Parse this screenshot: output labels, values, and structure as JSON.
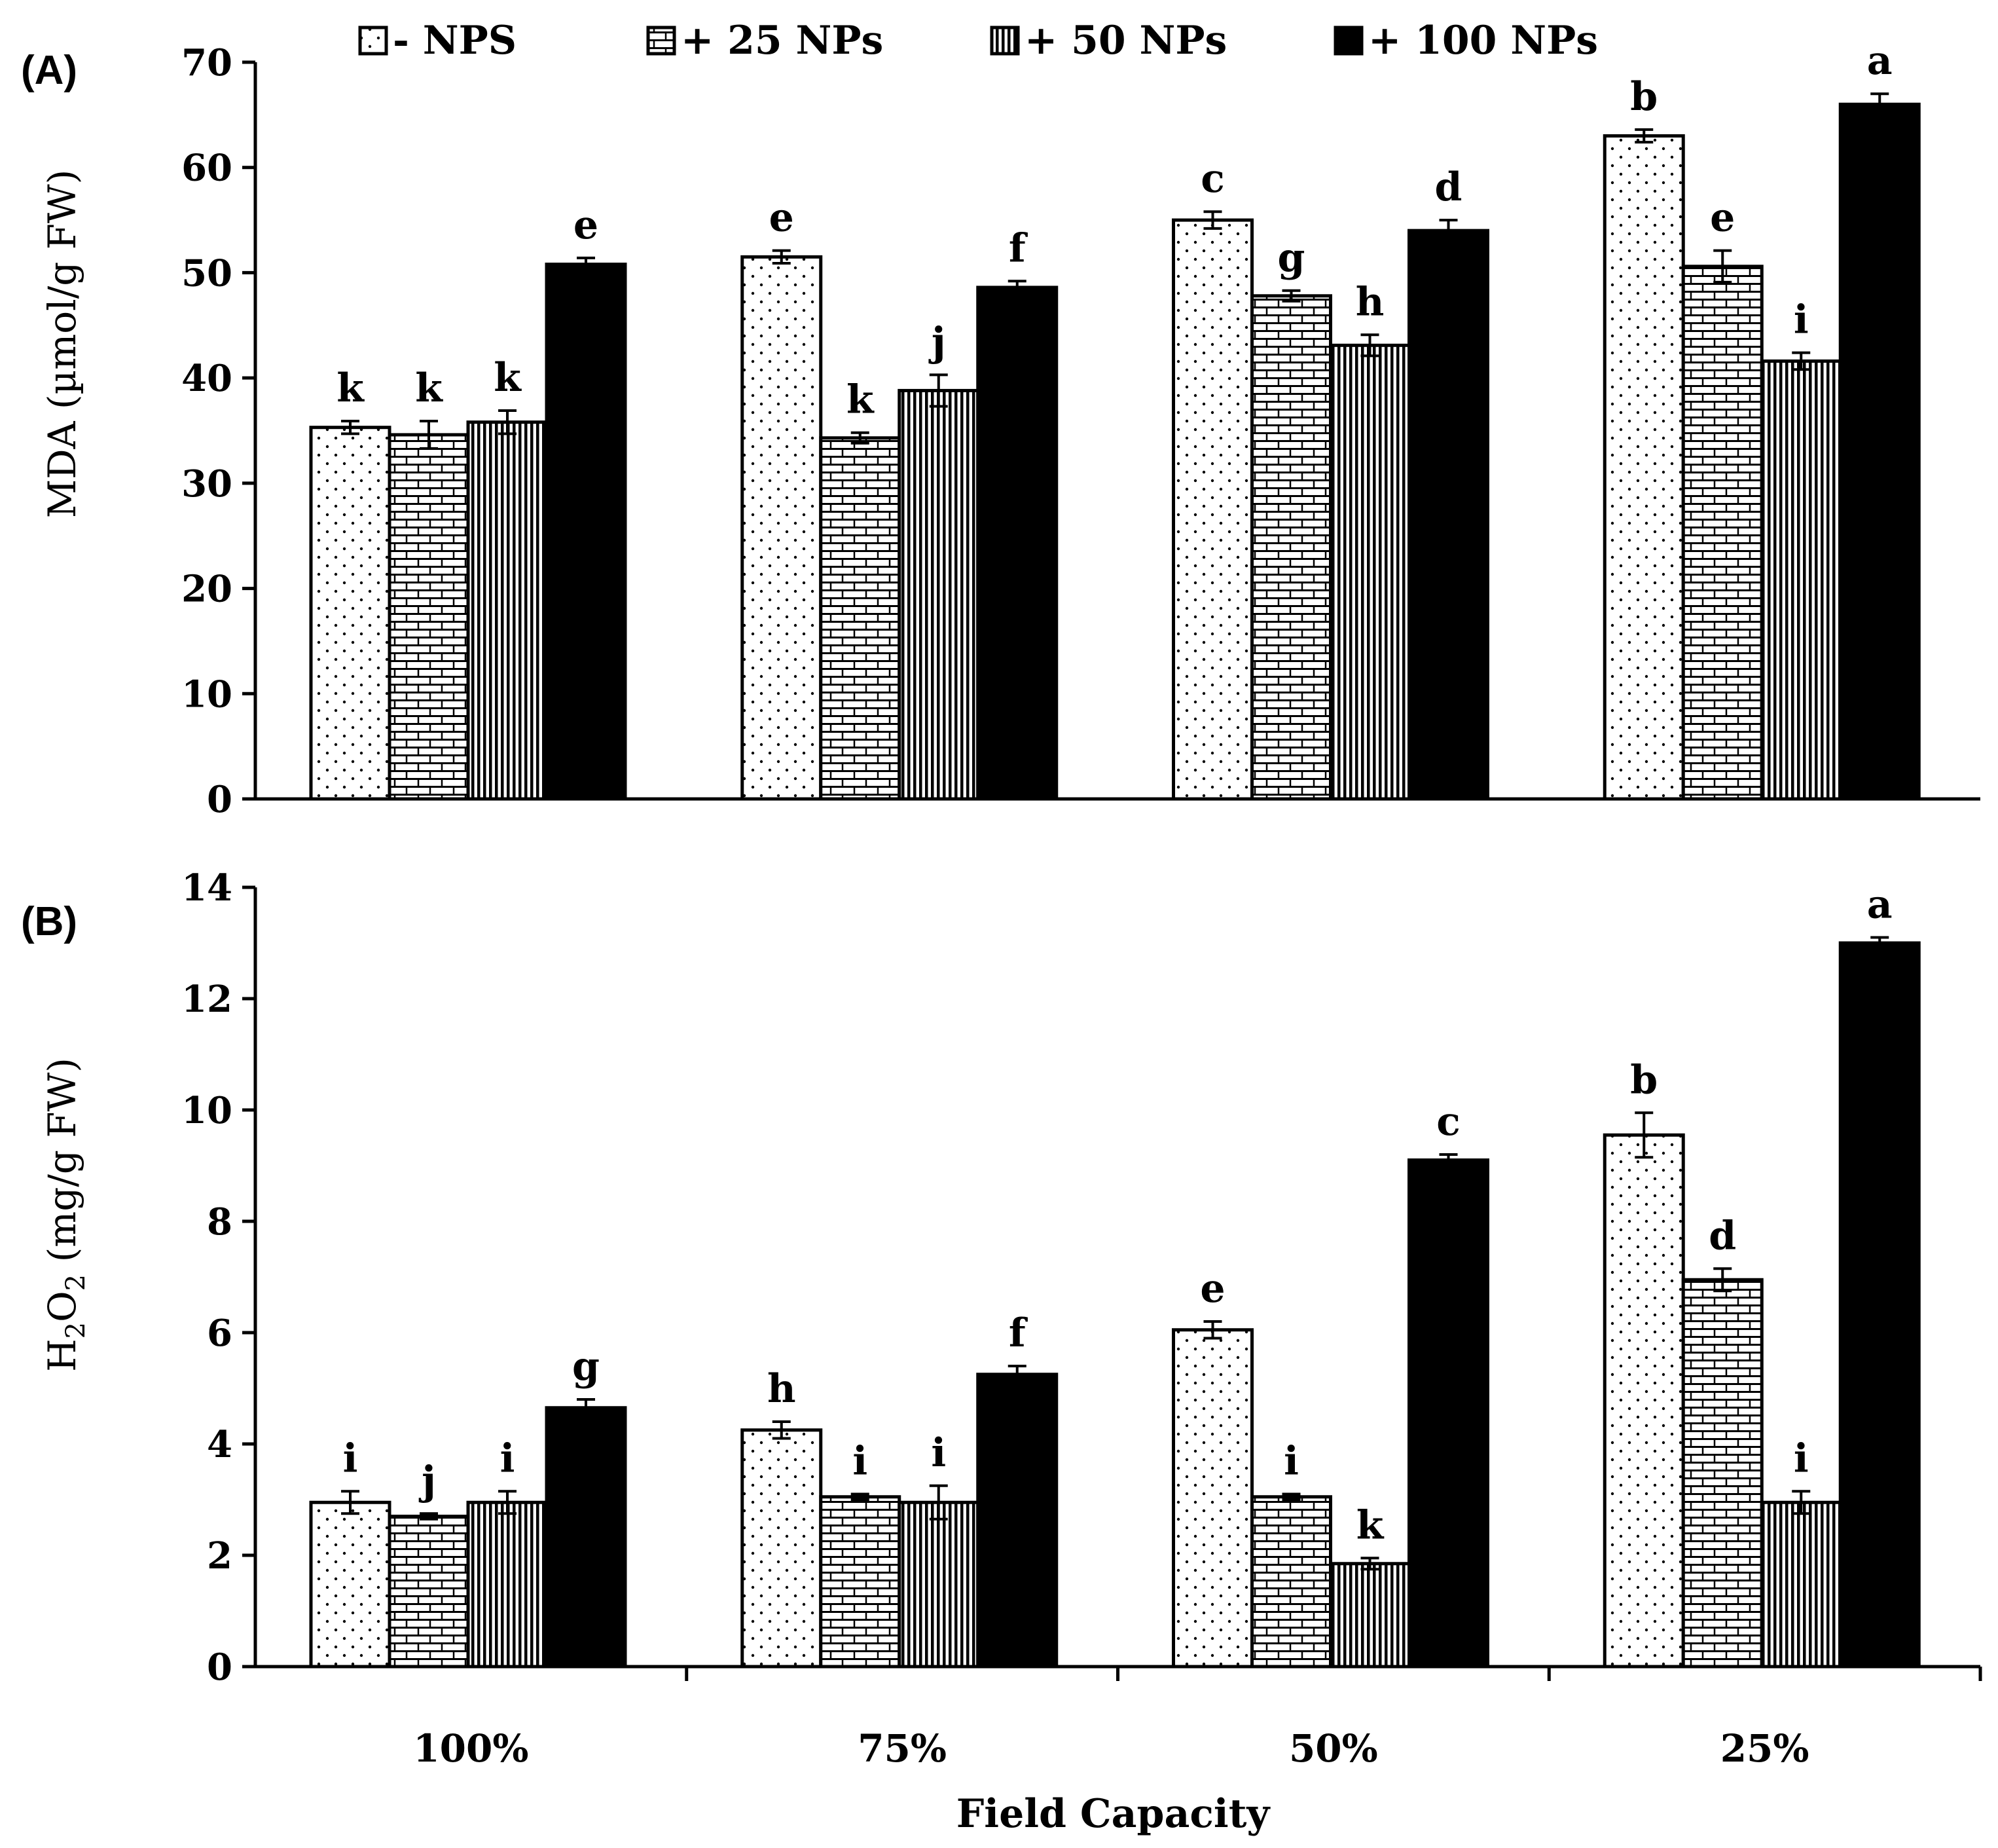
{
  "figure": {
    "x_axis_title": "Field Capacity"
  },
  "legend": [
    {
      "label": "- NPS",
      "pattern": "dots"
    },
    {
      "label": "+ 25 NPs",
      "pattern": "bricks"
    },
    {
      "label": "+ 50 NPs",
      "pattern": "vlines"
    },
    {
      "label": "+ 100 NPs",
      "pattern": "solid"
    }
  ],
  "chart_data": [
    {
      "type": "bar",
      "panel_label": "(A)",
      "ylabel": "MDA  (µmol/g FW)",
      "ylim": [
        0,
        70
      ],
      "yticks": [
        0,
        10,
        20,
        30,
        40,
        50,
        60,
        70
      ],
      "categories": [
        "100%",
        "75%",
        "50%",
        "25%"
      ],
      "series": [
        {
          "name": "- NPS",
          "values": [
            35.3,
            51.5,
            55.0,
            63.0
          ],
          "errors": [
            0.6,
            0.6,
            0.8,
            0.6
          ],
          "letters": [
            "k",
            "e",
            "c",
            "b"
          ]
        },
        {
          "name": "+ 25 NPs",
          "values": [
            34.6,
            34.3,
            47.8,
            50.6
          ],
          "errors": [
            1.3,
            0.5,
            0.5,
            1.5
          ],
          "letters": [
            "k",
            "k",
            "g",
            "e"
          ]
        },
        {
          "name": "+ 50 NPs",
          "values": [
            35.8,
            38.8,
            43.1,
            41.6
          ],
          "errors": [
            1.1,
            1.5,
            1.0,
            0.8
          ],
          "letters": [
            "k",
            "j",
            "h",
            "i"
          ]
        },
        {
          "name": "+ 100 NPs",
          "values": [
            50.8,
            48.6,
            54.0,
            66.0
          ],
          "errors": [
            0.6,
            0.6,
            1.0,
            1.0
          ],
          "letters": [
            "e",
            "f",
            "d",
            "a"
          ]
        }
      ]
    },
    {
      "type": "bar",
      "panel_label": "(B)",
      "ylabel_main": "H",
      "ylabel_sub1": "2",
      "ylabel_mid": "O",
      "ylabel_sub2": "2",
      "ylabel_rest": " (mg/g FW)",
      "ylim": [
        0,
        14
      ],
      "yticks": [
        0,
        2,
        4,
        6,
        8,
        10,
        12,
        14
      ],
      "categories": [
        "100%",
        "75%",
        "50%",
        "25%"
      ],
      "series": [
        {
          "name": "- NPS",
          "values": [
            2.95,
            4.25,
            6.05,
            9.55
          ],
          "errors": [
            0.2,
            0.15,
            0.15,
            0.4
          ],
          "letters": [
            "i",
            "h",
            "e",
            "b"
          ]
        },
        {
          "name": "+ 25 NPs",
          "values": [
            2.7,
            3.05,
            3.05,
            6.95
          ],
          "errors": [
            0.05,
            0.05,
            0.05,
            0.2
          ],
          "letters": [
            "j",
            "i",
            "i",
            "d"
          ]
        },
        {
          "name": "+ 50 NPs",
          "values": [
            2.95,
            2.95,
            1.85,
            2.95
          ],
          "errors": [
            0.2,
            0.3,
            0.1,
            0.2
          ],
          "letters": [
            "i",
            "i",
            "k",
            "i"
          ]
        },
        {
          "name": "+ 100 NPs",
          "values": [
            4.65,
            5.25,
            9.1,
            13.0
          ],
          "errors": [
            0.15,
            0.15,
            0.1,
            0.1
          ],
          "letters": [
            "g",
            "f",
            "c",
            "a"
          ]
        }
      ]
    }
  ]
}
